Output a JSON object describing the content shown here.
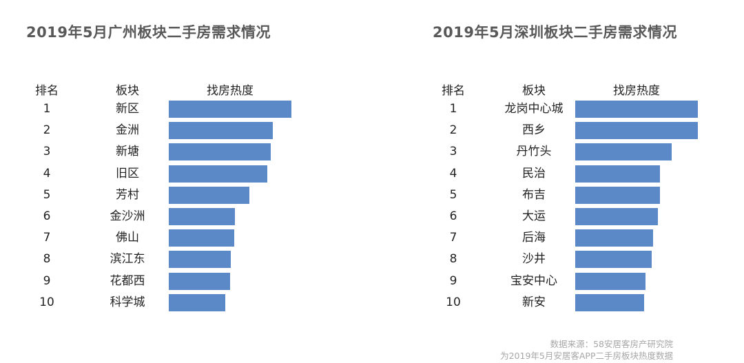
{
  "colors": {
    "bar": "#5b88c6",
    "title": "#595959",
    "source": "#a6a6a6"
  },
  "headers": {
    "rank": "排名",
    "block": "板块",
    "heat": "找房热度"
  },
  "source": {
    "line1": "数据来源：58安居客房产研究院",
    "line2": "为2019年5月安居客APP二手房板块热度数据"
  },
  "chart_data": [
    {
      "type": "bar",
      "orientation": "horizontal",
      "title": "2019年5月广州板块二手房需求情况",
      "xlabel": "找房热度",
      "ylabel": "板块",
      "ranks": [
        "1",
        "2",
        "3",
        "4",
        "5",
        "6",
        "7",
        "8",
        "9",
        "10"
      ],
      "categories": [
        "新区",
        "金洲",
        "新塘",
        "旧区",
        "芳村",
        "金沙洲",
        "佛山",
        "滨江东",
        "花都西",
        "科学城"
      ],
      "values": [
        178,
        151,
        148,
        143,
        117,
        96,
        95,
        90,
        89,
        82
      ],
      "note": "relative bar lengths (px), no axis shown"
    },
    {
      "type": "bar",
      "orientation": "horizontal",
      "title": "2019年5月深圳板块二手房需求情况",
      "xlabel": "找房热度",
      "ylabel": "板块",
      "ranks": [
        "1",
        "2",
        "3",
        "4",
        "5",
        "6",
        "7",
        "8",
        "9",
        "10"
      ],
      "categories": [
        "龙岗中心城",
        "西乡",
        "丹竹头",
        "民治",
        "布吉",
        "大运",
        "后海",
        "沙井",
        "宝安中心",
        "新安"
      ],
      "values": [
        178,
        178,
        140,
        123,
        123,
        120,
        113,
        111,
        102,
        100
      ],
      "note": "relative bar lengths (px), no axis shown"
    }
  ]
}
